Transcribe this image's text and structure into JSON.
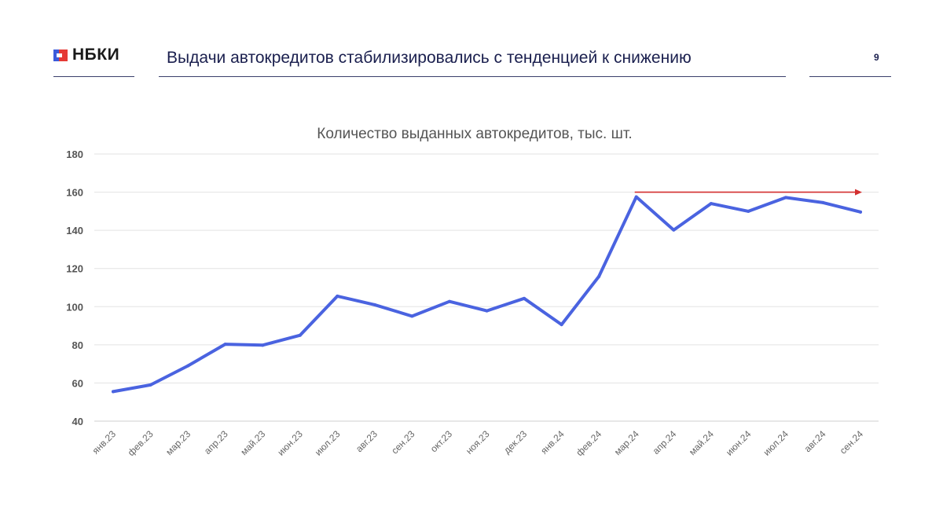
{
  "header": {
    "logo_text": "НБКИ",
    "title": "Выдачи автокредитов стабилизировались с тенденцией к снижению",
    "page_number": "9"
  },
  "colors": {
    "series": "#4a63e0",
    "arrow": "#d32f2f",
    "grid": "#e3e3e3",
    "title": "#1a1f4e"
  },
  "chart_data": {
    "type": "line",
    "title": "Количество выданных автокредитов, тыс. шт.",
    "xlabel": "",
    "ylabel": "",
    "ylim": [
      40,
      180
    ],
    "yticks": [
      40,
      60,
      80,
      100,
      120,
      140,
      160,
      180
    ],
    "grid": true,
    "categories": [
      "янв.23",
      "фев.23",
      "мар.23",
      "апр.23",
      "май.23",
      "июн.23",
      "июл.23",
      "авг.23",
      "сен.23",
      "окт.23",
      "ноя.23",
      "дек.23",
      "янв.24",
      "фев.24",
      "мар.24",
      "апр.24",
      "май.24",
      "июн.24",
      "июл.24",
      "авг.24",
      "сен.24"
    ],
    "series": [
      {
        "name": "Количество выданных автокредитов",
        "values": [
          55.5,
          59,
          69,
          80.3,
          79.8,
          85,
          105.5,
          101,
          95,
          102.7,
          97.8,
          104.3,
          90.6,
          115.8,
          157.5,
          140.2,
          154,
          150,
          157.2,
          154.5,
          149.6
        ]
      }
    ],
    "annotations": [
      {
        "type": "arrow",
        "from_category": "мар.24",
        "to_category": "сен.24",
        "y": 160
      }
    ]
  }
}
